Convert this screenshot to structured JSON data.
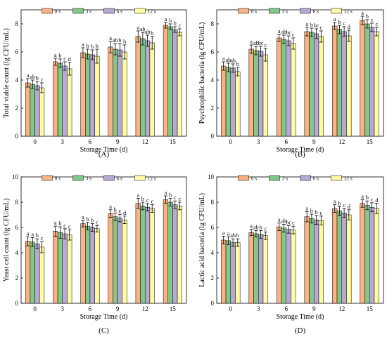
{
  "legend_colors": [
    "#F9B282",
    "#82C88A",
    "#B7A9D4",
    "#FDFBA3"
  ],
  "chart_data": [
    {
      "type": "bar",
      "panel_label": "(A)",
      "xlabel": "Storage Time (d)",
      "ylabel": "Total viable count (lg CFU/mL)",
      "categories": [
        "0",
        "3",
        "6",
        "9",
        "12",
        "15"
      ],
      "ylim": [
        0,
        9
      ],
      "yticks": [
        "0",
        "2",
        "4",
        "6",
        "8"
      ],
      "legend_position": "top-center",
      "series": [
        {
          "name": "0 s",
          "values": [
            3.8,
            5.3,
            5.95,
            6.35,
            7.1,
            7.9
          ],
          "errors": [
            0.3,
            0.25,
            0.35,
            0.4,
            0.4,
            0.2
          ],
          "letters": [
            "a",
            "a",
            "a",
            "a",
            "a",
            "a"
          ]
        },
        {
          "name": "3 s",
          "values": [
            3.7,
            5.2,
            5.85,
            6.2,
            6.95,
            7.8
          ],
          "errors": [
            0.3,
            0.3,
            0.35,
            0.4,
            0.45,
            0.2
          ],
          "letters": [
            "ab",
            "b",
            "b",
            "ab",
            "ab",
            "b"
          ]
        },
        {
          "name": "6 s",
          "values": [
            3.6,
            5.0,
            5.8,
            6.15,
            6.8,
            7.6
          ],
          "errors": [
            0.3,
            0.3,
            0.35,
            0.45,
            0.4,
            0.2
          ],
          "letters": [
            "b",
            "c",
            "b",
            "b",
            "ab",
            "b"
          ]
        },
        {
          "name": "12 s",
          "values": [
            3.45,
            4.8,
            5.7,
            6.0,
            6.65,
            7.4
          ],
          "errors": [
            0.35,
            0.45,
            0.5,
            0.5,
            0.45,
            0.25
          ],
          "letters": [
            "c",
            "d",
            "b",
            "b",
            "b",
            "c"
          ]
        }
      ]
    },
    {
      "type": "bar",
      "panel_label": "(B)",
      "xlabel": "Storage Time (d)",
      "ylabel": "Psychrophilic bacteria (lg CFU/mL)",
      "categories": [
        "0",
        "3",
        "6",
        "9",
        "12",
        "15"
      ],
      "ylim": [
        0,
        9
      ],
      "yticks": [
        "0",
        "2",
        "4",
        "6",
        "8"
      ],
      "legend_position": "top-center",
      "series": [
        {
          "name": "0 s",
          "values": [
            5.0,
            6.2,
            7.0,
            7.45,
            7.85,
            8.25
          ],
          "errors": [
            0.3,
            0.3,
            0.25,
            0.3,
            0.25,
            0.3
          ],
          "letters": [
            "a",
            "a",
            "a",
            "a",
            "a",
            "a"
          ]
        },
        {
          "name": "3 s",
          "values": [
            4.9,
            6.1,
            6.9,
            7.4,
            7.6,
            8.0
          ],
          "errors": [
            0.3,
            0.3,
            0.3,
            0.3,
            0.3,
            0.3
          ],
          "letters": [
            "ab",
            "ab",
            "ab",
            "b",
            "b",
            "b"
          ]
        },
        {
          "name": "6 s",
          "values": [
            4.85,
            6.05,
            6.8,
            7.3,
            7.45,
            7.75
          ],
          "errors": [
            0.3,
            0.35,
            0.35,
            0.35,
            0.35,
            0.3
          ],
          "letters": [
            "ab",
            "bc",
            "bc",
            "bc",
            "c",
            "c"
          ]
        },
        {
          "name": "12 s",
          "values": [
            4.6,
            5.8,
            6.6,
            7.1,
            7.15,
            7.45
          ],
          "errors": [
            0.3,
            0.45,
            0.4,
            0.4,
            0.4,
            0.3
          ],
          "letters": [
            "b",
            "c",
            "c",
            "c",
            "d",
            "c"
          ]
        }
      ]
    },
    {
      "type": "bar",
      "panel_label": "(C)",
      "xlabel": "Storage Time (d)",
      "ylabel": "Yeast cell count (lg CFU/mL)",
      "categories": [
        "0",
        "3",
        "6",
        "9",
        "12",
        "15"
      ],
      "ylim": [
        0,
        10
      ],
      "yticks": [
        "0",
        "2",
        "4",
        "6",
        "8",
        "10"
      ],
      "legend_position": "top-center",
      "series": [
        {
          "name": "0 s",
          "values": [
            4.9,
            5.7,
            6.3,
            7.1,
            7.9,
            8.2
          ],
          "errors": [
            0.35,
            0.4,
            0.25,
            0.3,
            0.4,
            0.3
          ],
          "letters": [
            "a",
            "a",
            "a",
            "a",
            "a",
            "a"
          ]
        },
        {
          "name": "3 s",
          "values": [
            4.85,
            5.6,
            6.1,
            6.85,
            7.7,
            8.0
          ],
          "errors": [
            0.35,
            0.45,
            0.3,
            0.3,
            0.3,
            0.3
          ],
          "letters": [
            "a",
            "b",
            "b",
            "b",
            "b",
            "b"
          ]
        },
        {
          "name": "6 s",
          "values": [
            4.7,
            5.5,
            6.0,
            6.75,
            7.6,
            7.8
          ],
          "errors": [
            0.4,
            0.4,
            0.3,
            0.3,
            0.3,
            0.3
          ],
          "letters": [
            "b",
            "c",
            "b",
            "c",
            "c",
            "c"
          ]
        },
        {
          "name": "12 s",
          "values": [
            4.45,
            5.4,
            5.9,
            6.6,
            7.5,
            7.7
          ],
          "errors": [
            0.45,
            0.4,
            0.25,
            0.3,
            0.3,
            0.3
          ],
          "letters": [
            "c",
            "c",
            "c",
            "d",
            "c",
            "c"
          ]
        }
      ]
    },
    {
      "type": "bar",
      "panel_label": "(D)",
      "xlabel": "Storage Time (d)",
      "ylabel": "Lactic acid bacteria (lg CFU/mL)",
      "categories": [
        "0",
        "3",
        "6",
        "9",
        "12",
        "15"
      ],
      "ylim": [
        0,
        10
      ],
      "yticks": [
        "0",
        "2",
        "4",
        "6",
        "8",
        "10"
      ],
      "legend_position": "top-center",
      "series": [
        {
          "name": "0 s",
          "values": [
            5.0,
            5.6,
            6.05,
            6.85,
            7.5,
            7.9
          ],
          "errors": [
            0.3,
            0.25,
            0.3,
            0.4,
            0.3,
            0.3
          ],
          "letters": [
            "a",
            "a",
            "a",
            "a",
            "a",
            "a"
          ]
        },
        {
          "name": "3 s",
          "values": [
            4.95,
            5.5,
            5.95,
            6.7,
            7.3,
            7.75
          ],
          "errors": [
            0.3,
            0.25,
            0.3,
            0.35,
            0.35,
            0.35
          ],
          "letters": [
            "a",
            "ab",
            "ab",
            "b",
            "b",
            "b"
          ]
        },
        {
          "name": "6 s",
          "values": [
            4.8,
            5.45,
            5.85,
            6.6,
            7.15,
            7.6
          ],
          "errors": [
            0.3,
            0.3,
            0.3,
            0.35,
            0.35,
            0.35
          ],
          "letters": [
            "ab",
            "b",
            "bc",
            "b",
            "c",
            "c"
          ]
        },
        {
          "name": "12 s",
          "values": [
            4.8,
            5.35,
            5.8,
            6.55,
            7.0,
            7.5
          ],
          "errors": [
            0.3,
            0.3,
            0.3,
            0.35,
            0.4,
            0.4
          ],
          "letters": [
            "b",
            "c",
            "c",
            "c",
            "d",
            "d"
          ]
        }
      ]
    }
  ]
}
